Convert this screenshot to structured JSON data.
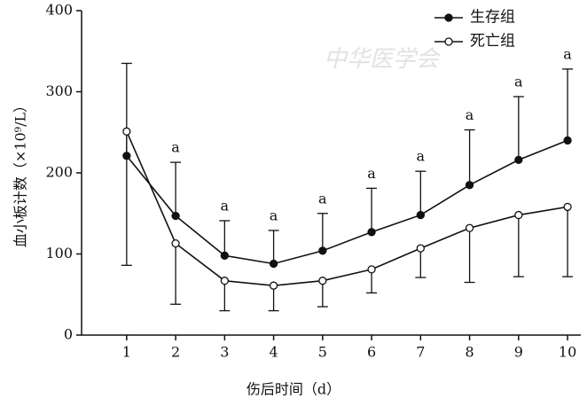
{
  "chart_data": {
    "type": "line",
    "xlabel": "伤后时间（d）",
    "ylabel": "血小板计数（×10⁹/L）",
    "watermark": "中华医学会",
    "x": [
      1,
      2,
      3,
      4,
      5,
      6,
      7,
      8,
      9,
      10
    ],
    "xlim": [
      0.08,
      10.27
    ],
    "xticks": [
      1,
      2,
      3,
      4,
      5,
      6,
      7,
      8,
      9,
      10
    ],
    "ylim": [
      0,
      400
    ],
    "yticks": [
      0,
      100,
      200,
      300,
      400
    ],
    "legend": "top-right",
    "series": [
      {
        "name": "生存组",
        "color": "#111111",
        "marker": "filled",
        "values": [
          221,
          147,
          98,
          88,
          104,
          127,
          148,
          185,
          216,
          240
        ],
        "errors": [
          114,
          66,
          43,
          41,
          46,
          54,
          54,
          68,
          78,
          88
        ],
        "error_direction": "up"
      },
      {
        "name": "死亡组",
        "color": "#111111",
        "marker": "open",
        "values": [
          251,
          113,
          67,
          61,
          67,
          81,
          107,
          132,
          148,
          158
        ],
        "errors": [
          165,
          75,
          37,
          31,
          32,
          29,
          36,
          67,
          76,
          86
        ],
        "error_direction": "down"
      }
    ],
    "annotations": [
      {
        "x": 2,
        "text": "a"
      },
      {
        "x": 3,
        "text": "a"
      },
      {
        "x": 4,
        "text": "a"
      },
      {
        "x": 5,
        "text": "a"
      },
      {
        "x": 6,
        "text": "a"
      },
      {
        "x": 7,
        "text": "a"
      },
      {
        "x": 8,
        "text": "a"
      },
      {
        "x": 9,
        "text": "a"
      },
      {
        "x": 10,
        "text": "a"
      }
    ]
  }
}
